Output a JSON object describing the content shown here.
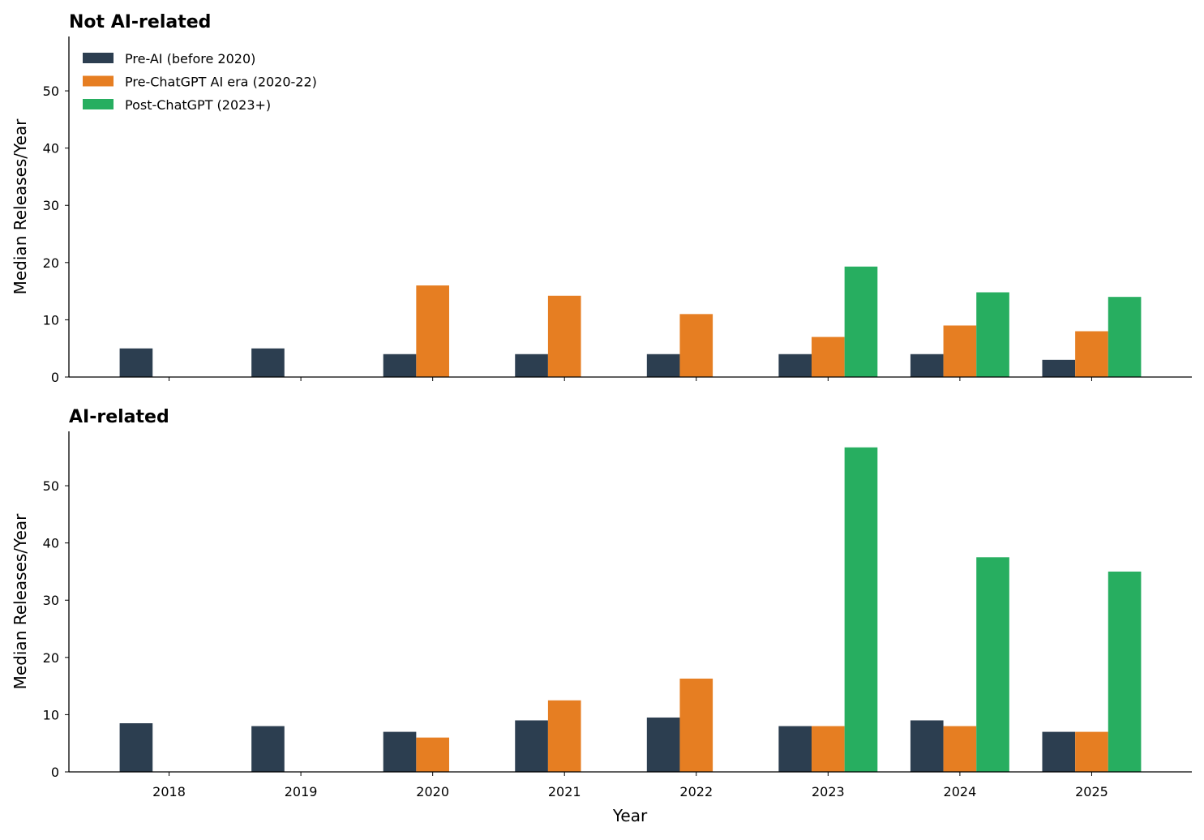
{
  "chart_data": {
    "type": "bar",
    "xlabel": "Year",
    "categories": [
      "2018",
      "2019",
      "2020",
      "2021",
      "2022",
      "2023",
      "2024",
      "2025"
    ],
    "legend": {
      "placement": "top-left",
      "entries": [
        "Pre-AI (before 2020)",
        "Pre-ChatGPT AI era (2020-22)",
        "Post-ChatGPT (2023+)"
      ]
    },
    "colors": {
      "Pre-AI (before 2020)": "#2c3e50",
      "Pre-ChatGPT AI era (2020-22)": "#e67e22",
      "Post-ChatGPT (2023+)": "#27ae60"
    },
    "ylim": [
      0,
      59.5
    ],
    "yticks": [
      0,
      10,
      20,
      30,
      40,
      50
    ],
    "grid": false,
    "panels": [
      {
        "title": "Not AI-related",
        "ylabel": "Median Releases/Year",
        "series": [
          {
            "name": "Pre-AI (before 2020)",
            "values": [
              5,
              5,
              4,
              4,
              4,
              4,
              4,
              3
            ]
          },
          {
            "name": "Pre-ChatGPT AI era (2020-22)",
            "values": [
              null,
              null,
              16,
              14.2,
              11,
              7,
              9,
              8
            ]
          },
          {
            "name": "Post-ChatGPT (2023+)",
            "values": [
              null,
              null,
              null,
              null,
              null,
              19.3,
              14.8,
              14
            ]
          }
        ]
      },
      {
        "title": "AI-related",
        "ylabel": "Median Releases/Year",
        "series": [
          {
            "name": "Pre-AI (before 2020)",
            "values": [
              8.5,
              8,
              7,
              9,
              9.5,
              8,
              9,
              7
            ]
          },
          {
            "name": "Pre-ChatGPT AI era (2020-22)",
            "values": [
              null,
              null,
              6,
              12.5,
              16.3,
              8,
              8,
              7
            ]
          },
          {
            "name": "Post-ChatGPT (2023+)",
            "values": [
              null,
              null,
              null,
              null,
              null,
              56.7,
              37.5,
              35
            ]
          }
        ]
      }
    ]
  }
}
